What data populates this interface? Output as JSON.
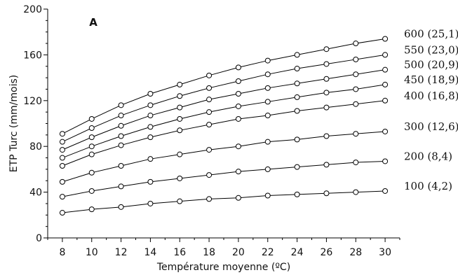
{
  "chart_data": {
    "type": "line",
    "panel_label": "A",
    "xlabel": "Température moyenne (ºC)",
    "ylabel": "ETP Turc (mm/mois)",
    "xlim": [
      7,
      31
    ],
    "ylim": [
      0,
      200
    ],
    "x_ticks": [
      8,
      10,
      12,
      14,
      16,
      18,
      20,
      22,
      24,
      26,
      28,
      30
    ],
    "y_ticks": [
      0,
      40,
      80,
      120,
      160,
      200
    ],
    "x": [
      8,
      10,
      12,
      14,
      16,
      18,
      20,
      22,
      24,
      26,
      28,
      30
    ],
    "series": [
      {
        "name": "100 (4,2)",
        "values": [
          22,
          25,
          27,
          30,
          32,
          34,
          35,
          37,
          38,
          39,
          40,
          41
        ]
      },
      {
        "name": "200 (8,4)",
        "values": [
          36,
          41,
          45,
          49,
          52,
          55,
          58,
          60,
          62,
          64,
          66,
          67
        ]
      },
      {
        "name": "300 (12,6)",
        "values": [
          49,
          57,
          63,
          69,
          73,
          77,
          80,
          84,
          86,
          89,
          91,
          93
        ]
      },
      {
        "name": "400 (16,8)",
        "values": [
          63,
          73,
          81,
          88,
          94,
          99,
          104,
          107,
          111,
          114,
          117,
          120
        ]
      },
      {
        "name": "450 (18,9)",
        "values": [
          70,
          80,
          89,
          97,
          104,
          110,
          115,
          119,
          123,
          127,
          130,
          134
        ]
      },
      {
        "name": "500 (20,9)",
        "values": [
          77,
          88,
          98,
          107,
          114,
          121,
          126,
          131,
          135,
          139,
          143,
          147
        ]
      },
      {
        "name": "550 (23,0)",
        "values": [
          84,
          96,
          107,
          116,
          124,
          131,
          137,
          143,
          148,
          152,
          156,
          160
        ]
      },
      {
        "name": "600 (25,1)",
        "values": [
          91,
          104,
          116,
          126,
          134,
          142,
          149,
          155,
          160,
          165,
          170,
          174
        ]
      }
    ]
  }
}
